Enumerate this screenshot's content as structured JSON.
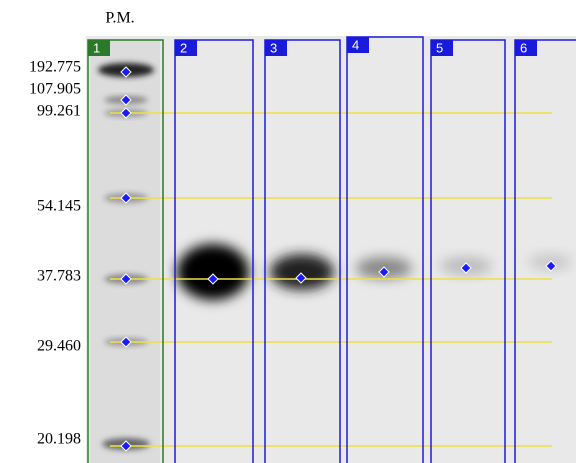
{
  "header": {
    "title": "P.M."
  },
  "markers": [
    "192.775",
    "107.905",
    "99.261",
    "54.145",
    "37.783",
    "29.460",
    "20.198"
  ],
  "lanes": [
    "1",
    "2",
    "3",
    "4",
    "5",
    "6"
  ]
}
